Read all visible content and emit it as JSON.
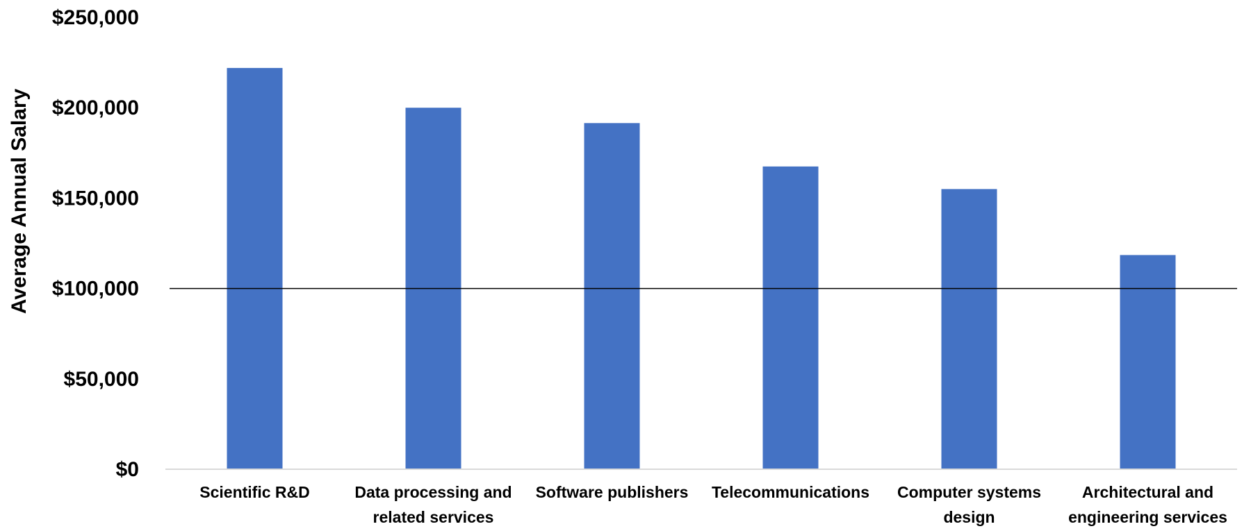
{
  "chart_data": {
    "type": "bar",
    "title": "",
    "xlabel": "",
    "ylabel": "Average Annual Salary",
    "categories": [
      [
        "Scientific R&D"
      ],
      [
        "Data processing and",
        "related services"
      ],
      [
        "Software publishers"
      ],
      [
        "Telecommunications"
      ],
      [
        "Computer systems",
        "design"
      ],
      [
        "Architectural and",
        "engineering services"
      ]
    ],
    "values": [
      222000,
      200000,
      191500,
      167500,
      155000,
      118500
    ],
    "ylim": [
      0,
      250000
    ],
    "yticks": [
      "$0",
      "$50,000",
      "$100,000",
      "$150,000",
      "$200,000",
      "$250,000"
    ],
    "ytick_values": [
      0,
      50000,
      100000,
      150000,
      200000,
      250000
    ],
    "reference_line": 100000,
    "grid": false,
    "colors": {
      "bar": "#4472C4",
      "axis": "#D9D9D9",
      "reference_line": "#000000"
    }
  }
}
